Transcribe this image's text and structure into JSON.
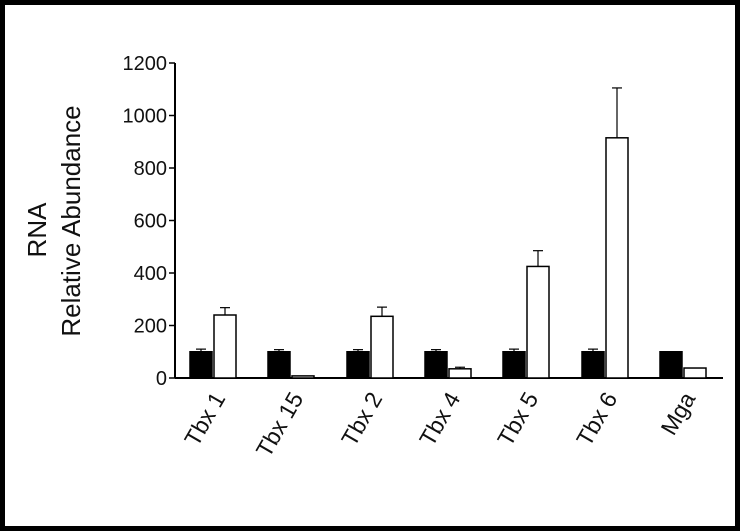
{
  "chart_data": {
    "type": "bar",
    "categories": [
      "Tbx 1",
      "Tbx 15",
      "Tbx 2",
      "Tbx 4",
      "Tbx 5",
      "Tbx 6",
      "Mga"
    ],
    "series": [
      {
        "values": [
          100,
          100,
          100,
          100,
          100,
          100,
          100
        ],
        "errors": [
          10,
          8,
          8,
          8,
          10,
          10,
          0
        ],
        "color": "#000000"
      },
      {
        "values": [
          240,
          8,
          235,
          35,
          425,
          915,
          38
        ],
        "errors": [
          28,
          0,
          35,
          6,
          60,
          190,
          0
        ],
        "color": "#ffffff"
      }
    ],
    "ylabel_lines": [
      "RNA",
      "Relative Abundance"
    ],
    "ylim": [
      0,
      1200
    ],
    "yticks": [
      0,
      200,
      400,
      600,
      800,
      1000,
      1200
    ],
    "grid": false,
    "legend": "none"
  }
}
